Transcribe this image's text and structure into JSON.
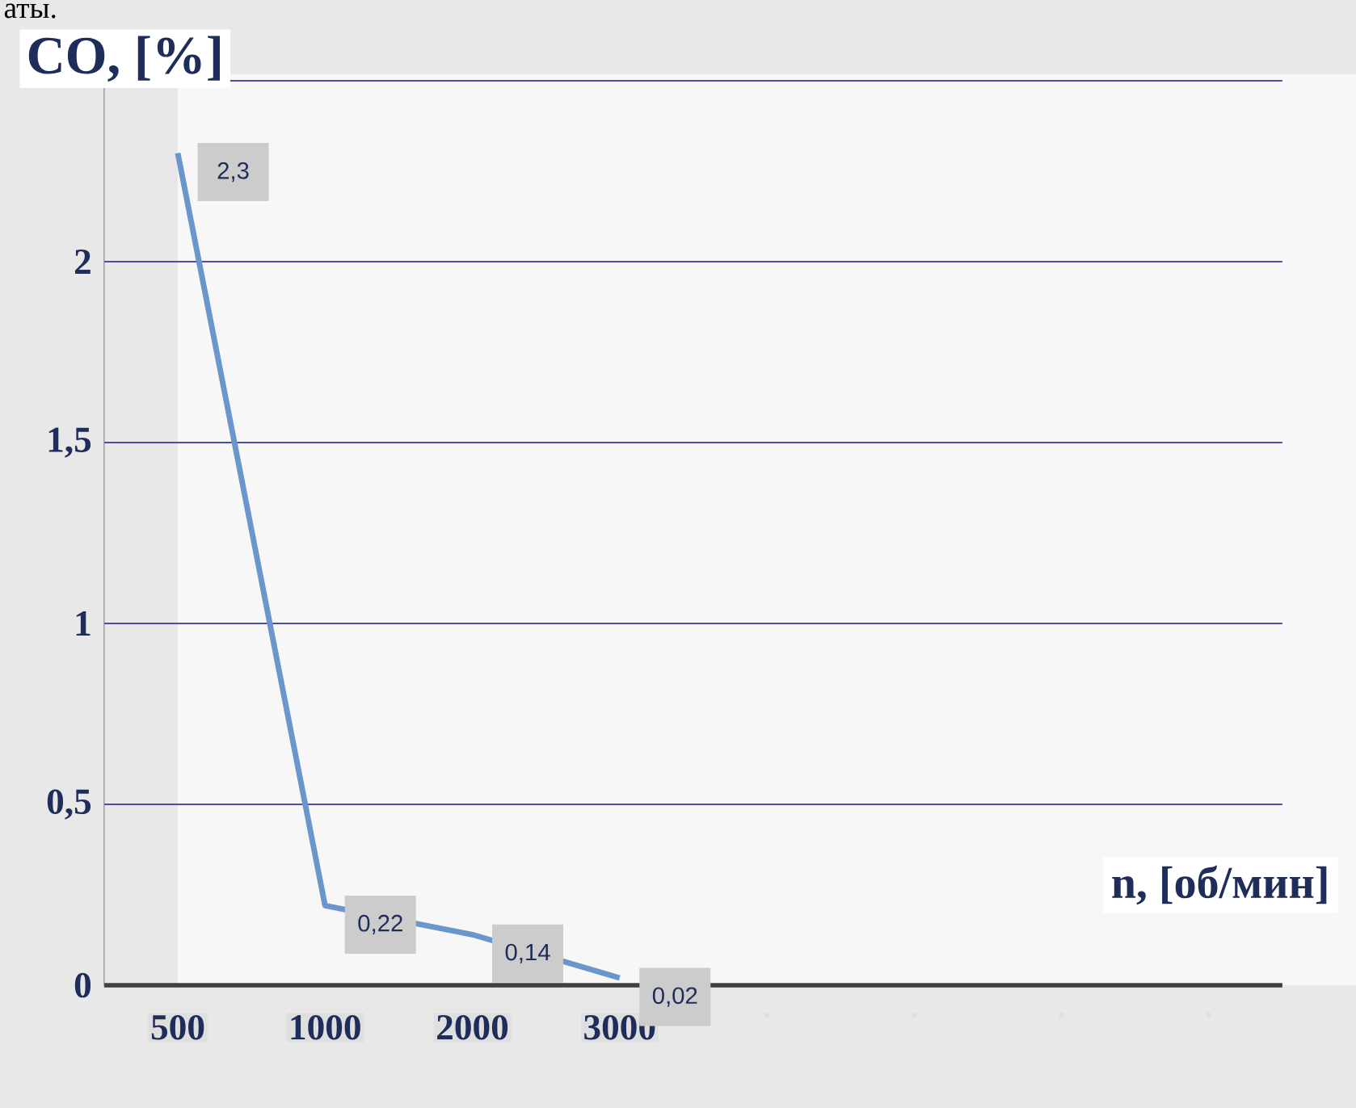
{
  "chart_data": {
    "type": "line",
    "ylabel": "CO, [%]",
    "xlabel": "n, [об/мин]",
    "annotations": [
      "аты."
    ],
    "categories": [
      "500",
      "1000",
      "2000",
      "3000",
      null,
      null,
      null,
      null
    ],
    "values": [
      2.3,
      0.22,
      0.14,
      0.02,
      null,
      null,
      null,
      null
    ],
    "value_labels": [
      "2,3",
      "0,22",
      "0,14",
      "0,02",
      null,
      null,
      null,
      null
    ],
    "color": "#6a96cc",
    "ylim": [
      0,
      2.5
    ],
    "yticks": [
      {
        "value": 0,
        "label": "0"
      },
      {
        "value": 0.5,
        "label": "0,5"
      },
      {
        "value": 1,
        "label": "1"
      },
      {
        "value": 1.5,
        "label": "1,5"
      },
      {
        "value": 2,
        "label": "2"
      },
      {
        "value": 2.5,
        "label": null
      }
    ],
    "grid": "y",
    "marker": "none",
    "line_style": "solid"
  }
}
